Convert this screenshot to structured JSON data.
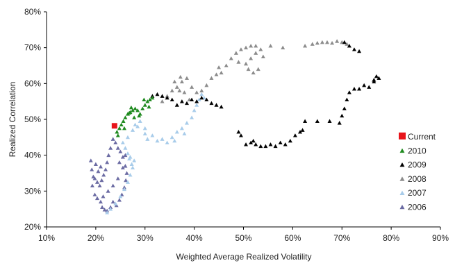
{
  "chart_data": {
    "type": "scatter",
    "title": "",
    "xlabel": "Weighted Average Realized Volatility",
    "ylabel": "Realized Correlation",
    "xlim": [
      10,
      90
    ],
    "ylim": [
      20,
      80
    ],
    "x_ticks": [
      "10%",
      "20%",
      "30%",
      "40%",
      "50%",
      "60%",
      "70%",
      "80%",
      "90%"
    ],
    "y_ticks": [
      "20%",
      "30%",
      "40%",
      "50%",
      "60%",
      "70%",
      "80%"
    ],
    "grid": false,
    "legend_position": "right",
    "series": [
      {
        "name": "2006",
        "color": "#6B6BA3",
        "marker": "triangle",
        "points": [
          [
            19.0,
            38.5
          ],
          [
            19.2,
            36.0
          ],
          [
            19.5,
            34.0
          ],
          [
            19.3,
            31.5
          ],
          [
            19.8,
            29.0
          ],
          [
            20.3,
            28.0
          ],
          [
            21.0,
            27.0
          ],
          [
            21.3,
            25.5
          ],
          [
            21.8,
            24.8
          ],
          [
            22.3,
            24.5
          ],
          [
            23.0,
            25.5
          ],
          [
            23.5,
            27.0
          ],
          [
            24.2,
            26.0
          ],
          [
            24.8,
            27.5
          ],
          [
            25.3,
            29.0
          ],
          [
            25.8,
            31.0
          ],
          [
            26.1,
            33.0
          ],
          [
            26.3,
            35.0
          ],
          [
            26.0,
            37.0
          ],
          [
            25.5,
            39.5
          ],
          [
            25.0,
            41.0
          ],
          [
            24.5,
            42.0
          ],
          [
            24.0,
            43.5
          ],
          [
            23.5,
            44.5
          ],
          [
            23.0,
            42.0
          ],
          [
            22.6,
            40.0
          ],
          [
            22.3,
            38.0
          ],
          [
            22.0,
            36.0
          ],
          [
            21.6,
            34.5
          ],
          [
            21.2,
            33.0
          ],
          [
            20.8,
            31.5
          ],
          [
            20.3,
            32.5
          ],
          [
            19.8,
            33.5
          ],
          [
            20.5,
            35.5
          ],
          [
            21.0,
            36.8
          ],
          [
            20.0,
            37.5
          ],
          [
            21.5,
            28.5
          ],
          [
            22.5,
            30.0
          ],
          [
            23.5,
            31.5
          ],
          [
            24.5,
            33.5
          ],
          [
            25.5,
            36.5
          ],
          [
            26.0,
            40.0
          ],
          [
            24.8,
            38.0
          ]
        ]
      },
      {
        "name": "2007",
        "color": "#A8CCEA",
        "marker": "triangle",
        "points": [
          [
            22.3,
            24.0
          ],
          [
            23.0,
            25.0
          ],
          [
            24.0,
            26.5
          ],
          [
            25.0,
            28.5
          ],
          [
            25.8,
            30.5
          ],
          [
            26.5,
            32.5
          ],
          [
            27.0,
            34.5
          ],
          [
            27.5,
            36.5
          ],
          [
            27.8,
            38.5
          ],
          [
            27.0,
            39.5
          ],
          [
            26.5,
            40.5
          ],
          [
            26.0,
            42.0
          ],
          [
            25.5,
            43.5
          ],
          [
            26.5,
            45.0
          ],
          [
            27.5,
            47.0
          ],
          [
            28.0,
            48.5
          ],
          [
            29.0,
            49.5
          ],
          [
            30.0,
            46.0
          ],
          [
            30.5,
            44.5
          ],
          [
            31.5,
            45.5
          ],
          [
            32.5,
            44.0
          ],
          [
            33.5,
            44.5
          ],
          [
            34.5,
            43.5
          ],
          [
            35.5,
            45.0
          ],
          [
            36.5,
            46.5
          ],
          [
            37.5,
            47.5
          ],
          [
            38.5,
            49.0
          ],
          [
            39.5,
            50.5
          ],
          [
            40.0,
            52.5
          ],
          [
            40.5,
            54.0
          ],
          [
            41.0,
            55.5
          ],
          [
            41.5,
            57.0
          ],
          [
            42.0,
            56.0
          ],
          [
            38.0,
            46.0
          ],
          [
            36.0,
            44.0
          ],
          [
            30.0,
            47.5
          ],
          [
            28.5,
            48.0
          ],
          [
            27.3,
            37.5
          ],
          [
            26.8,
            39.0
          ]
        ]
      },
      {
        "name": "2008",
        "color": "#8C8C8C",
        "marker": "triangle",
        "points": [
          [
            33.5,
            55.0
          ],
          [
            34.5,
            56.5
          ],
          [
            35.5,
            58.0
          ],
          [
            36.5,
            59.0
          ],
          [
            37.5,
            60.5
          ],
          [
            38.5,
            61.5
          ],
          [
            39.5,
            59.0
          ],
          [
            40.5,
            57.5
          ],
          [
            41.5,
            58.0
          ],
          [
            42.5,
            59.5
          ],
          [
            43.5,
            61.5
          ],
          [
            44.5,
            62.5
          ],
          [
            45.5,
            63.0
          ],
          [
            46.5,
            65.0
          ],
          [
            47.5,
            67.0
          ],
          [
            48.5,
            68.5
          ],
          [
            49.5,
            69.5
          ],
          [
            50.5,
            70.0
          ],
          [
            51.5,
            70.5
          ],
          [
            52.5,
            70.5
          ],
          [
            53.5,
            69.5
          ],
          [
            52.5,
            68.5
          ],
          [
            51.5,
            67.0
          ],
          [
            50.5,
            65.5
          ],
          [
            51.0,
            64.0
          ],
          [
            52.0,
            63.0
          ],
          [
            53.0,
            64.0
          ],
          [
            54.0,
            67.5
          ],
          [
            55.5,
            70.5
          ],
          [
            58.0,
            70.0
          ],
          [
            62.5,
            70.5
          ],
          [
            64.0,
            71.0
          ],
          [
            65.0,
            71.3
          ],
          [
            66.0,
            71.5
          ],
          [
            67.0,
            71.5
          ],
          [
            68.0,
            71.3
          ],
          [
            69.0,
            71.8
          ],
          [
            70.0,
            71.5
          ],
          [
            71.0,
            71.0
          ],
          [
            37.0,
            58.0
          ],
          [
            38.0,
            57.5
          ],
          [
            39.0,
            55.5
          ],
          [
            36.0,
            60.5
          ],
          [
            37.2,
            61.8
          ],
          [
            45.0,
            64.5
          ],
          [
            49.0,
            66.0
          ]
        ]
      },
      {
        "name": "2009",
        "color": "#000000",
        "marker": "triangle",
        "points": [
          [
            31.5,
            56.5
          ],
          [
            32.5,
            57.0
          ],
          [
            33.5,
            56.5
          ],
          [
            34.5,
            56.0
          ],
          [
            35.5,
            55.5
          ],
          [
            36.5,
            54.0
          ],
          [
            37.5,
            55.0
          ],
          [
            38.5,
            54.5
          ],
          [
            39.5,
            55.5
          ],
          [
            40.5,
            55.0
          ],
          [
            41.5,
            56.0
          ],
          [
            42.5,
            55.5
          ],
          [
            43.5,
            54.5
          ],
          [
            44.5,
            54.0
          ],
          [
            45.5,
            53.5
          ],
          [
            49.0,
            46.5
          ],
          [
            49.5,
            45.5
          ],
          [
            50.5,
            43.0
          ],
          [
            51.5,
            43.5
          ],
          [
            52.0,
            44.0
          ],
          [
            52.5,
            43.0
          ],
          [
            53.5,
            42.5
          ],
          [
            54.5,
            42.5
          ],
          [
            55.5,
            43.0
          ],
          [
            56.5,
            42.5
          ],
          [
            57.5,
            43.5
          ],
          [
            58.5,
            43.0
          ],
          [
            59.5,
            44.0
          ],
          [
            60.5,
            45.5
          ],
          [
            61.5,
            46.5
          ],
          [
            62.0,
            47.0
          ],
          [
            62.5,
            49.5
          ],
          [
            65.0,
            49.5
          ],
          [
            67.5,
            49.5
          ],
          [
            69.5,
            49.0
          ],
          [
            70.0,
            51.0
          ],
          [
            70.5,
            53.0
          ],
          [
            71.0,
            55.5
          ],
          [
            71.5,
            57.5
          ],
          [
            72.5,
            58.5
          ],
          [
            73.5,
            58.5
          ],
          [
            74.5,
            59.5
          ],
          [
            75.5,
            59.0
          ],
          [
            76.5,
            60.5
          ],
          [
            77.0,
            62.0
          ],
          [
            77.5,
            61.5
          ],
          [
            76.5,
            61.0
          ],
          [
            70.5,
            71.5
          ],
          [
            71.5,
            70.5
          ],
          [
            72.5,
            69.5
          ],
          [
            73.5,
            69.0
          ]
        ]
      },
      {
        "name": "2010",
        "color": "#1F8A1F",
        "marker": "triangle",
        "points": [
          [
            24.3,
            46.5
          ],
          [
            24.8,
            47.5
          ],
          [
            25.2,
            48.5
          ],
          [
            25.6,
            49.5
          ],
          [
            26.0,
            50.5
          ],
          [
            26.5,
            51.5
          ],
          [
            27.0,
            52.0
          ],
          [
            27.5,
            52.5
          ],
          [
            28.0,
            53.0
          ],
          [
            28.5,
            52.5
          ],
          [
            29.0,
            51.5
          ],
          [
            29.5,
            53.0
          ],
          [
            30.0,
            54.0
          ],
          [
            30.5,
            55.0
          ],
          [
            31.0,
            55.5
          ],
          [
            31.5,
            56.0
          ],
          [
            30.8,
            53.5
          ],
          [
            29.8,
            55.5
          ],
          [
            28.8,
            51.0
          ],
          [
            27.8,
            50.5
          ],
          [
            26.8,
            51.8
          ],
          [
            25.8,
            47.5
          ],
          [
            24.5,
            45.5
          ],
          [
            27.2,
            53.3
          ]
        ]
      },
      {
        "name": "Current",
        "color": "#E8141B",
        "marker": "square",
        "points": [
          [
            23.8,
            48.2
          ]
        ]
      }
    ],
    "legend_order": [
      "Current",
      "2010",
      "2009",
      "2008",
      "2007",
      "2006"
    ]
  }
}
